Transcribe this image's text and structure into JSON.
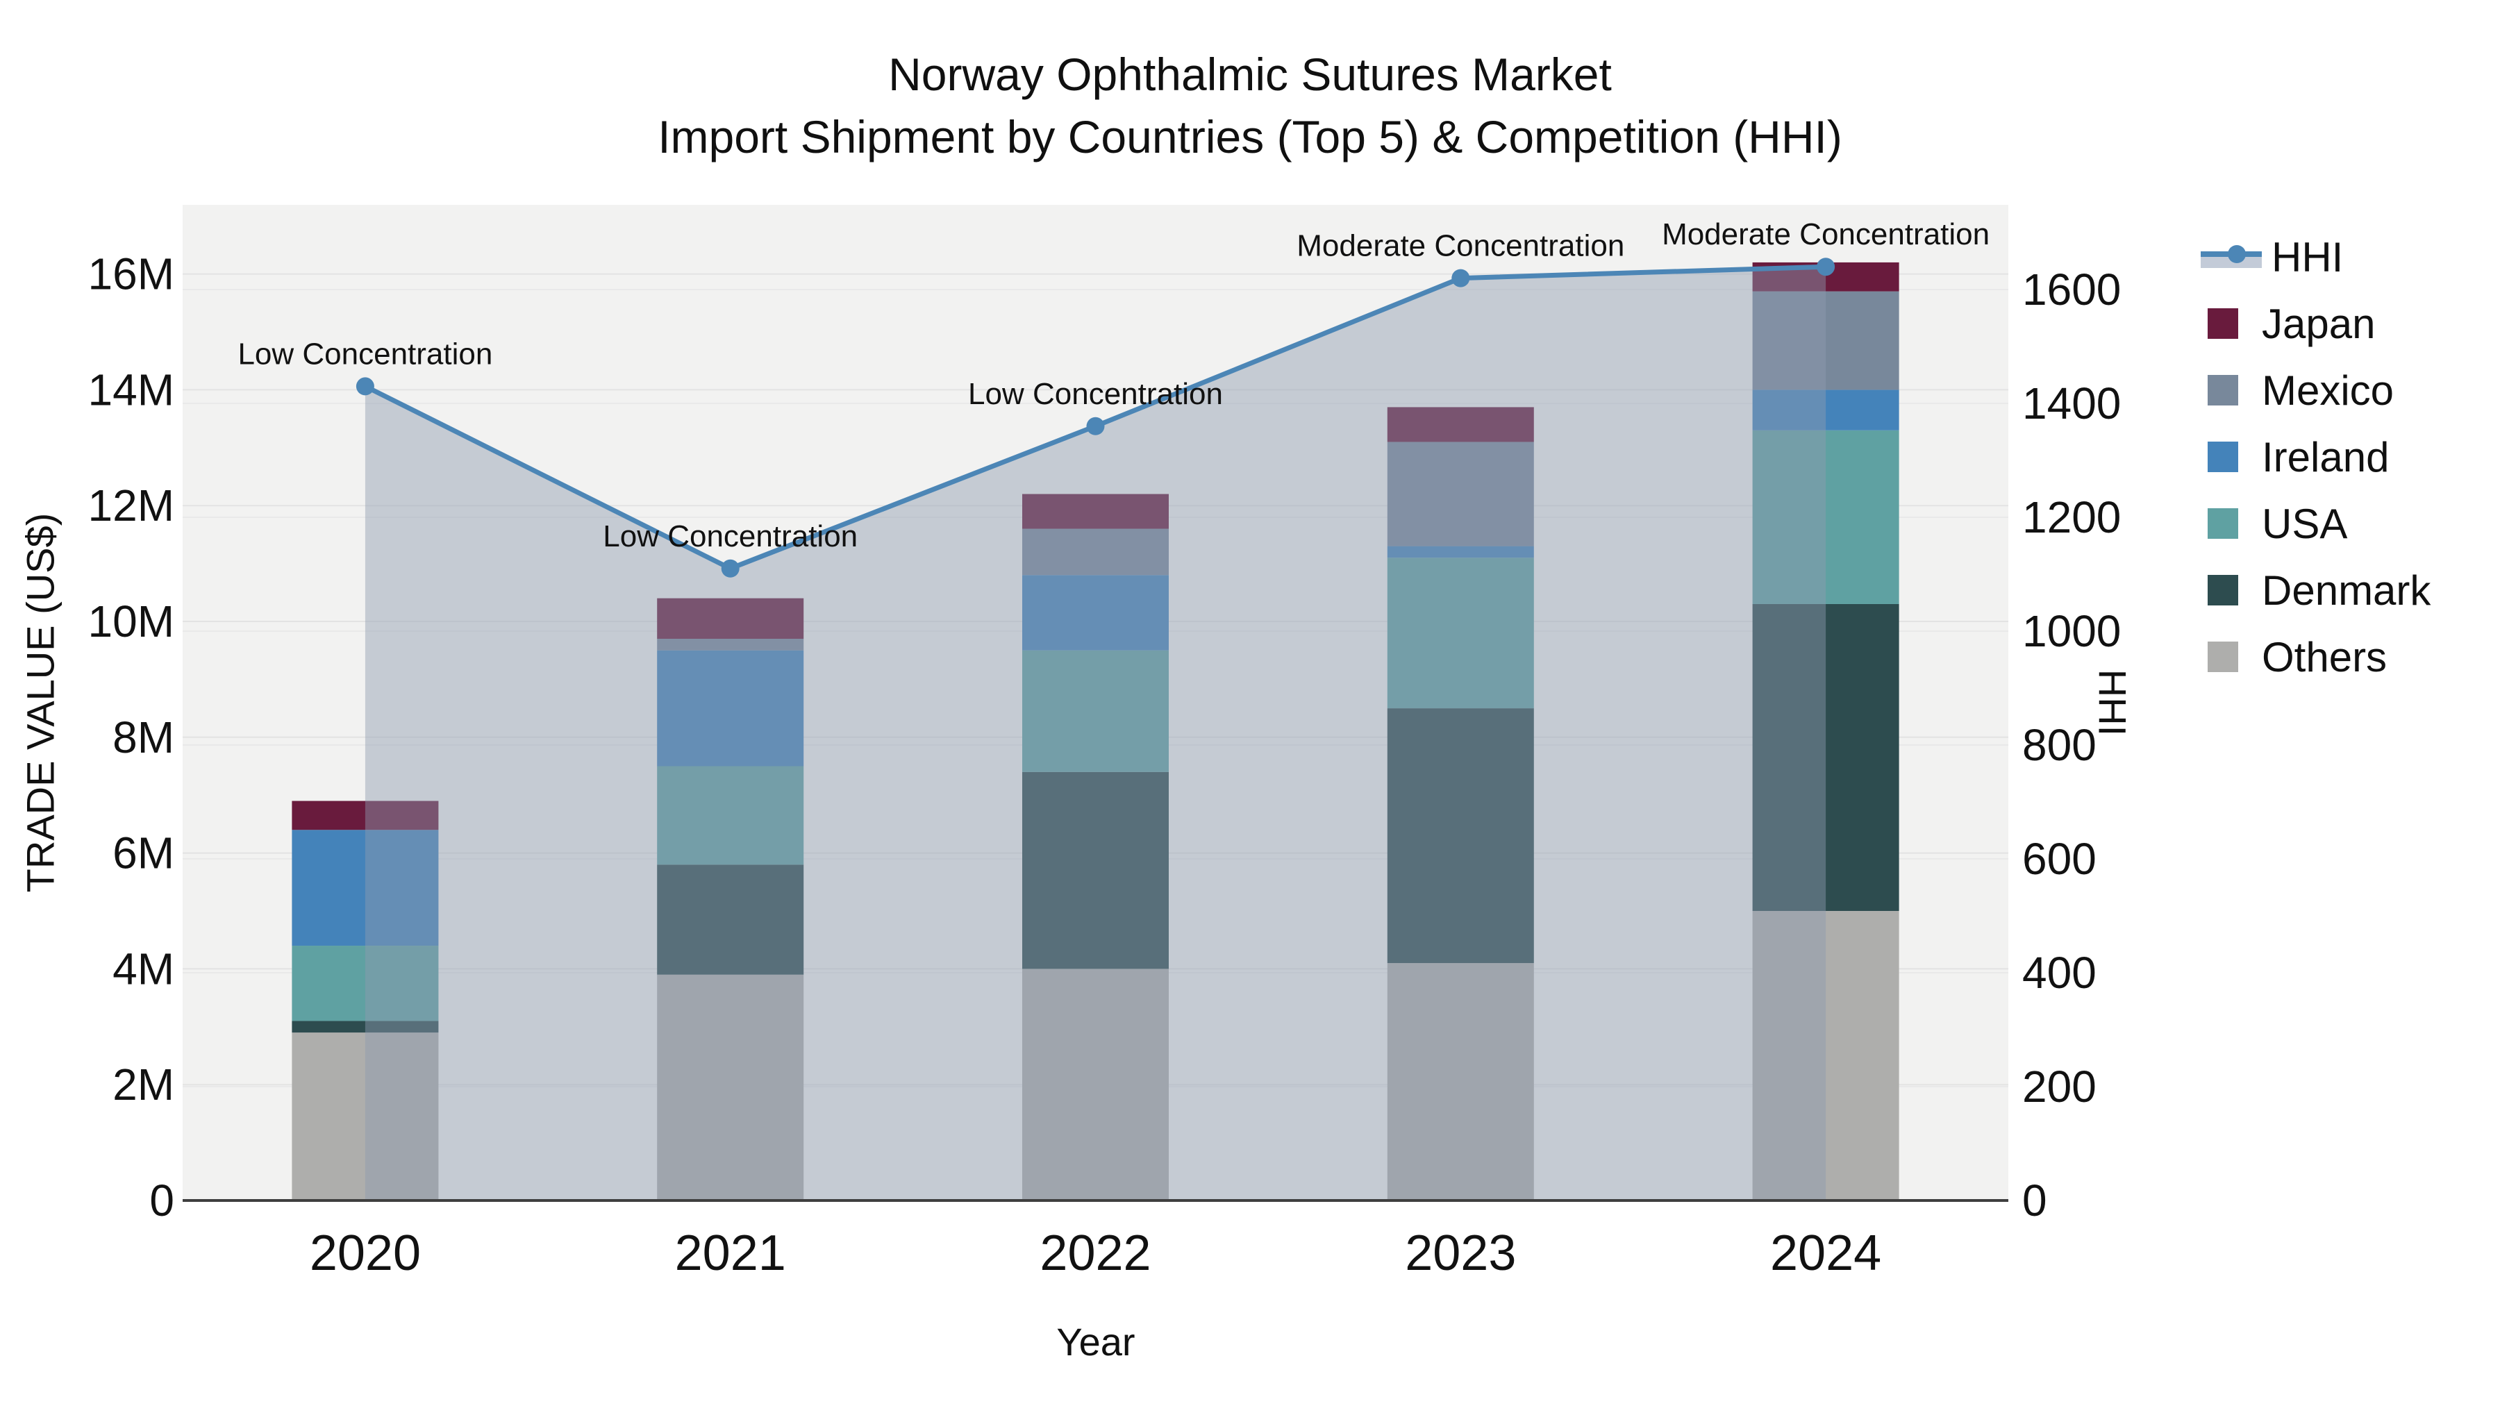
{
  "title": {
    "line1": "Norway Ophthalmic Sutures Market",
    "line2": "Import Shipment by Countries (Top 5) & Competition (HHI)"
  },
  "axes": {
    "x_title": "Year",
    "y_left_title": "TRADE VALUE (US$)",
    "y_right_title": "HHI",
    "y_left_ticks": [
      "0",
      "2M",
      "4M",
      "6M",
      "8M",
      "10M",
      "12M",
      "14M",
      "16M"
    ],
    "y_right_ticks": [
      "0",
      "200",
      "400",
      "600",
      "800",
      "1000",
      "1200",
      "1400",
      "1600"
    ]
  },
  "legend": {
    "items": [
      {
        "label": "HHI",
        "type": "line",
        "color": "#4c86b6"
      },
      {
        "label": "Japan",
        "type": "swatch",
        "color": "#691b3d"
      },
      {
        "label": "Mexico",
        "type": "swatch",
        "color": "#78889b"
      },
      {
        "label": "Ireland",
        "type": "swatch",
        "color": "#4483ba"
      },
      {
        "label": "USA",
        "type": "swatch",
        "color": "#5fa1a2"
      },
      {
        "label": "Denmark",
        "type": "swatch",
        "color": "#2d4c4f"
      },
      {
        "label": "Others",
        "type": "swatch",
        "color": "#aeaeac"
      }
    ]
  },
  "chart_data": {
    "type": "bar",
    "subtype": "stacked-bar-with-secondary-axis-line",
    "title": "Norway Ophthalmic Sutures Market — Import Shipment by Countries (Top 5) & Competition (HHI)",
    "categories": [
      "2020",
      "2021",
      "2022",
      "2023",
      "2024"
    ],
    "units_left": "US$ millions",
    "series": [
      {
        "name": "Others",
        "color": "#aeaeac",
        "values": [
          2.9,
          3.9,
          4.0,
          4.1,
          5.0
        ]
      },
      {
        "name": "Denmark",
        "color": "#2d4c4f",
        "values": [
          0.2,
          1.9,
          3.4,
          4.4,
          5.3
        ]
      },
      {
        "name": "USA",
        "color": "#5fa1a2",
        "values": [
          1.3,
          1.7,
          2.1,
          2.6,
          3.0
        ]
      },
      {
        "name": "Ireland",
        "color": "#4483ba",
        "values": [
          2.0,
          2.0,
          1.3,
          0.2,
          0.7
        ]
      },
      {
        "name": "Mexico",
        "color": "#78889b",
        "values": [
          0.0,
          0.2,
          0.8,
          1.8,
          1.7
        ]
      },
      {
        "name": "Japan",
        "color": "#691b3d",
        "values": [
          0.5,
          0.7,
          0.6,
          0.6,
          0.5
        ]
      }
    ],
    "bar_totals": [
      6.9,
      10.4,
      12.2,
      13.7,
      16.2
    ],
    "line_series": {
      "name": "HHI",
      "axis": "right",
      "color": "#4c86b6",
      "values": [
        1430,
        1110,
        1360,
        1620,
        1640
      ],
      "area_fill": "rgba(141,155,176,0.45)",
      "annotations": [
        "Low Concentration",
        "Low Concentration",
        "Low Concentration",
        "Moderate Concentration",
        "Moderate Concentration"
      ]
    },
    "xlabel": "Year",
    "ylabel": "TRADE VALUE (US$)",
    "ylabel_right": "HHI",
    "ylim_left": [
      0,
      17.2
    ],
    "ylim_right": [
      0,
      1750
    ],
    "grid": true,
    "legend_position": "right",
    "plot_background": "#f2f2f1"
  }
}
